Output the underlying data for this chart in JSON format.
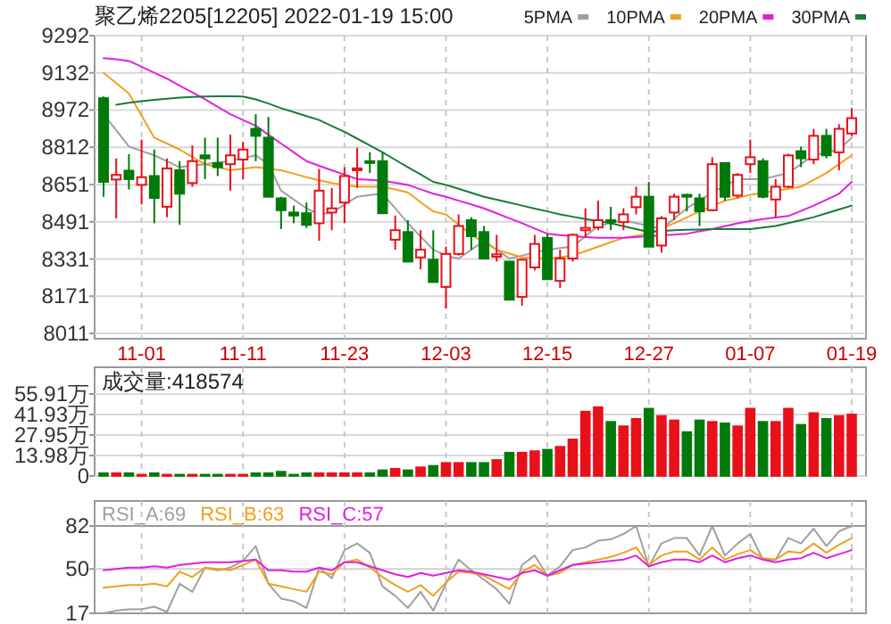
{
  "chart_data": [
    {
      "type": "candlestick",
      "title": "聚乙烯2205[12205]  2022-01-19 15:00",
      "legend": "top right",
      "grid": true,
      "categories": [
        null,
        null,
        null,
        "11-01",
        null,
        null,
        null,
        null,
        null,
        null,
        null,
        "11-11",
        null,
        null,
        null,
        null,
        null,
        null,
        null,
        "11-23",
        null,
        null,
        null,
        null,
        null,
        null,
        null,
        "12-03",
        null,
        null,
        null,
        null,
        null,
        null,
        null,
        "12-15",
        null,
        null,
        null,
        null,
        null,
        null,
        null,
        "12-27",
        null,
        null,
        null,
        null,
        null,
        null,
        null,
        "01-07",
        null,
        null,
        null,
        null,
        null,
        null,
        null,
        "01-19"
      ],
      "ylim": [
        8011,
        9292
      ],
      "yticks": [
        8011,
        8171,
        8331,
        8491,
        8651,
        8812,
        8972,
        9132,
        9292
      ],
      "ohlc": [
        [
          9023,
          9030,
          8599,
          8663
        ],
        [
          8673,
          8764,
          8506,
          8693
        ],
        [
          8711,
          8782,
          8630,
          8675
        ],
        [
          8650,
          8845,
          8566,
          8683
        ],
        [
          8688,
          8802,
          8485,
          8594
        ],
        [
          8556,
          8764,
          8511,
          8721
        ],
        [
          8713,
          8752,
          8478,
          8612
        ],
        [
          8658,
          8820,
          8642,
          8752
        ],
        [
          8777,
          8853,
          8675,
          8764
        ],
        [
          8744,
          8853,
          8688,
          8726
        ],
        [
          8739,
          8866,
          8625,
          8777
        ],
        [
          8759,
          8835,
          8675,
          8802
        ],
        [
          8891,
          8954,
          8752,
          8861
        ],
        [
          8853,
          8942,
          8599,
          8599
        ],
        [
          8592,
          8599,
          8460,
          8541
        ],
        [
          8531,
          8561,
          8485,
          8518
        ],
        [
          8528,
          8574,
          8465,
          8478
        ],
        [
          8485,
          8719,
          8409,
          8625
        ],
        [
          8531,
          8637,
          8455,
          8549
        ],
        [
          8574,
          8726,
          8485,
          8688
        ],
        [
          8713,
          8810,
          8637,
          8721
        ],
        [
          8752,
          8790,
          8701,
          8744
        ],
        [
          8752,
          8790,
          8528,
          8528
        ],
        [
          8414,
          8518,
          8371,
          8455
        ],
        [
          8447,
          8498,
          8320,
          8320
        ],
        [
          8338,
          8455,
          8287,
          8371
        ],
        [
          8328,
          8455,
          8232,
          8232
        ],
        [
          8211,
          8384,
          8118,
          8353
        ],
        [
          8353,
          8523,
          8346,
          8473
        ],
        [
          8498,
          8511,
          8371,
          8429
        ],
        [
          8447,
          8473,
          8333,
          8333
        ],
        [
          8341,
          8435,
          8320,
          8351
        ],
        [
          8320,
          8320,
          8156,
          8156
        ],
        [
          8168,
          8333,
          8130,
          8328
        ],
        [
          8295,
          8435,
          8282,
          8396
        ],
        [
          8422,
          8440,
          8244,
          8244
        ],
        [
          8237,
          8371,
          8206,
          8333
        ],
        [
          8333,
          8440,
          8320,
          8435
        ],
        [
          8455,
          8549,
          8422,
          8465
        ],
        [
          8467,
          8582,
          8455,
          8498
        ],
        [
          8498,
          8556,
          8455,
          8490
        ],
        [
          8490,
          8549,
          8455,
          8523
        ],
        [
          8554,
          8642,
          8523,
          8599
        ],
        [
          8599,
          8663,
          8384,
          8384
        ],
        [
          8389,
          8516,
          8358,
          8506
        ],
        [
          8531,
          8612,
          8498,
          8599
        ],
        [
          8607,
          8612,
          8536,
          8599
        ],
        [
          8592,
          8612,
          8473,
          8536
        ],
        [
          8541,
          8769,
          8536,
          8739
        ],
        [
          8744,
          8744,
          8582,
          8599
        ],
        [
          8604,
          8701,
          8592,
          8693
        ],
        [
          8739,
          8845,
          8701,
          8769
        ],
        [
          8752,
          8764,
          8592,
          8599
        ],
        [
          8587,
          8675,
          8511,
          8642
        ],
        [
          8642,
          8784,
          8637,
          8777
        ],
        [
          8795,
          8815,
          8726,
          8764
        ],
        [
          8759,
          8891,
          8739,
          8861
        ],
        [
          8861,
          8891,
          8764,
          8777
        ],
        [
          8790,
          8911,
          8713,
          8891
        ],
        [
          8871,
          8980,
          8861,
          8937
        ]
      ],
      "series": [
        {
          "name": "5PMA",
          "type": "line",
          "color": "#a0a0a0",
          "values": [
            8954,
            8885,
            8815,
            8796,
            8777,
            8752,
            8726,
            8733,
            8739,
            8746,
            8752,
            8765,
            8777,
            8739,
            8625,
            8587,
            8549,
            8523,
            8531,
            8565,
            8599,
            8606,
            8612,
            8549,
            8485,
            8428,
            8371,
            8346,
            8333,
            8371,
            8409,
            8371,
            8333,
            8346,
            8359,
            8371,
            8378,
            8384,
            8429,
            8473,
            8486,
            8498,
            8486,
            8473,
            8460,
            8505,
            8549,
            8583,
            8617,
            8646,
            8675,
            8675,
            8675,
            8688,
            8701,
            8739,
            8777,
            8790,
            8802,
            8853
          ]
        },
        {
          "name": "10PMA",
          "type": "line",
          "color": "#f0a020",
          "values": [
            9132,
            9088,
            9043,
            8948,
            8853,
            8828,
            8802,
            8770,
            8739,
            8726,
            8713,
            8720,
            8726,
            8720,
            8713,
            8698,
            8683,
            8670,
            8658,
            8650,
            8642,
            8642,
            8642,
            8630,
            8617,
            8576,
            8536,
            8523,
            8479,
            8435,
            8403,
            8371,
            8354,
            8338,
            8335,
            8333,
            8339,
            8346,
            8365,
            8384,
            8403,
            8422,
            8431,
            8440,
            8462,
            8485,
            8510,
            8536,
            8559,
            8582,
            8594,
            8607,
            8616,
            8625,
            8633,
            8642,
            8671,
            8701,
            8739,
            8777
          ]
        },
        {
          "name": "20PMA",
          "type": "line",
          "color": "#e020e0",
          "values": [
            9195,
            9190,
            9183,
            9158,
            9132,
            9107,
            9077,
            9048,
            9018,
            8986,
            8954,
            8929,
            8904,
            8866,
            8828,
            8790,
            8752,
            8732,
            8713,
            8694,
            8675,
            8672,
            8668,
            8659,
            8650,
            8631,
            8612,
            8599,
            8582,
            8566,
            8549,
            8528,
            8506,
            8485,
            8462,
            8440,
            8434,
            8429,
            8425,
            8422,
            8422,
            8422,
            8425,
            8429,
            8433,
            8436,
            8440,
            8450,
            8460,
            8472,
            8485,
            8494,
            8503,
            8510,
            8516,
            8538,
            8561,
            8586,
            8612,
            8663
          ]
        },
        {
          "name": "30PMA",
          "type": "line",
          "color": "#1a7a3a",
          "values": [
            null,
            8995,
            9003,
            9010,
            9016,
            9021,
            9025,
            9028,
            9030,
            9031,
            9031,
            9030,
            9018,
            9000,
            8980,
            8963,
            8946,
            8929,
            8903,
            8878,
            8849,
            8820,
            8790,
            8758,
            8726,
            8695,
            8663,
            8650,
            8633,
            8616,
            8599,
            8586,
            8574,
            8561,
            8548,
            8536,
            8523,
            8513,
            8503,
            8494,
            8485,
            8472,
            8460,
            8447,
            8451,
            8455,
            8457,
            8458,
            8460,
            8460,
            8460,
            8460,
            8466,
            8473,
            8486,
            8498,
            8511,
            8528,
            8544,
            8561
          ]
        }
      ]
    },
    {
      "type": "bar",
      "title": "成交量:418574",
      "grid": true,
      "tick_labels": "y",
      "categories": [
        null,
        null,
        null,
        null,
        null,
        null,
        null,
        null,
        null,
        null,
        null,
        null,
        null,
        null,
        null,
        null,
        null,
        null,
        null,
        null,
        null,
        null,
        null,
        null,
        null,
        null,
        null,
        null,
        null,
        null,
        null,
        null,
        null,
        null,
        null,
        null,
        null,
        null,
        null,
        null,
        null,
        null,
        null,
        null,
        null,
        null,
        null,
        null,
        null,
        null,
        null,
        null,
        null,
        null,
        null,
        null,
        null,
        null,
        null,
        null
      ],
      "ylim": [
        0,
        55.91
      ],
      "yticks": [
        0,
        {
          "value": 13.98,
          "label": "13.98万"
        },
        {
          "value": 27.95,
          "label": "27.95万"
        },
        {
          "value": 41.93,
          "label": "41.93万"
        },
        {
          "value": 55.91,
          "label": "55.91万"
        }
      ],
      "values": [
        2,
        2,
        2,
        1,
        2,
        1,
        1,
        1,
        1,
        1,
        1,
        1,
        2,
        2,
        3,
        1,
        2,
        2,
        2,
        2,
        2,
        2,
        4,
        5,
        4,
        6,
        7,
        9,
        9,
        9,
        9,
        11,
        16,
        16,
        17,
        18,
        20,
        25,
        44,
        47,
        37,
        34,
        39,
        46,
        41,
        38,
        30,
        38,
        37,
        36,
        34,
        46,
        37,
        37,
        46,
        35,
        43,
        39,
        41,
        42
      ],
      "colors": [
        "#007a0a",
        "#e8101a",
        "#007a0a",
        "#e8101a",
        "#007a0a",
        "#e8101a",
        "#007a0a",
        "#e8101a",
        "#007a0a",
        "#007a0a",
        "#e8101a",
        "#e8101a",
        "#007a0a",
        "#007a0a",
        "#007a0a",
        "#007a0a",
        "#007a0a",
        "#e8101a",
        "#e8101a",
        "#e8101a",
        "#e8101a",
        "#007a0a",
        "#007a0a",
        "#e8101a",
        "#007a0a",
        "#e8101a",
        "#007a0a",
        "#e8101a",
        "#e8101a",
        "#007a0a",
        "#007a0a",
        "#e8101a",
        "#007a0a",
        "#e8101a",
        "#e8101a",
        "#007a0a",
        "#e8101a",
        "#e8101a",
        "#e8101a",
        "#e8101a",
        "#007a0a",
        "#e8101a",
        "#e8101a",
        "#007a0a",
        "#e8101a",
        "#e8101a",
        "#007a0a",
        "#007a0a",
        "#e8101a",
        "#007a0a",
        "#e8101a",
        "#e8101a",
        "#007a0a",
        "#e8101a",
        "#e8101a",
        "#007a0a",
        "#e8101a",
        "#007a0a",
        "#e8101a",
        "#e8101a"
      ]
    },
    {
      "type": "line",
      "legend": "top left",
      "grid": "x",
      "tick_labels": "y",
      "ref_lines": [
        {
          "axis": "y",
          "value": 50
        }
      ],
      "categories": [
        null,
        null,
        null,
        null,
        null,
        null,
        null,
        null,
        null,
        null,
        null,
        null,
        null,
        null,
        null,
        null,
        null,
        null,
        null,
        null,
        null,
        null,
        null,
        null,
        null,
        null,
        null,
        null,
        null,
        null,
        null,
        null,
        null,
        null,
        null,
        null,
        null,
        null,
        null,
        null,
        null,
        null,
        null,
        null,
        null,
        null,
        null,
        null,
        null,
        null,
        null,
        null,
        null,
        null,
        null,
        null,
        null,
        null,
        null,
        null
      ],
      "ylim": [
        17,
        82
      ],
      "yticks": [
        17,
        50,
        82
      ],
      "series": [
        {
          "name": "RSI_A:69",
          "color": "#a0a0a0",
          "values": [
            17,
            19,
            20,
            20,
            22,
            18,
            39,
            33,
            51,
            49,
            51,
            56,
            67,
            39,
            28,
            26,
            21,
            51,
            43,
            64,
            69,
            62,
            37,
            30,
            21,
            33,
            19,
            39,
            57,
            49,
            42,
            35,
            24,
            53,
            60,
            45,
            52,
            64,
            66,
            71,
            72,
            76,
            82,
            52,
            69,
            73,
            73,
            60,
            82,
            60,
            69,
            76,
            57,
            57,
            73,
            69,
            80,
            67,
            78,
            82
          ]
        },
        {
          "name": "RSI_B:63",
          "color": "#f0a020",
          "values": [
            36,
            37,
            38,
            38,
            39,
            37,
            48,
            44,
            51,
            50,
            49,
            53,
            57,
            39,
            37,
            35,
            33,
            48,
            46,
            55,
            57,
            51,
            44,
            38,
            33,
            38,
            30,
            40,
            48,
            47,
            45,
            40,
            35,
            48,
            53,
            45,
            47,
            53,
            55,
            57,
            59,
            62,
            66,
            53,
            60,
            63,
            63,
            57,
            66,
            57,
            61,
            64,
            58,
            57,
            63,
            62,
            69,
            62,
            68,
            73
          ]
        },
        {
          "name": "RSI_C:57",
          "color": "#e020e0",
          "values": [
            49,
            50,
            51,
            51,
            52,
            51,
            53,
            54,
            55,
            55,
            55,
            56,
            57,
            49,
            49,
            48,
            48,
            51,
            49,
            55,
            55,
            52,
            49,
            46,
            44,
            47,
            45,
            47,
            49,
            48,
            46,
            44,
            42,
            47,
            49,
            45,
            49,
            53,
            54,
            55,
            56,
            57,
            60,
            52,
            55,
            57,
            57,
            55,
            60,
            55,
            58,
            60,
            57,
            55,
            57,
            58,
            62,
            58,
            61,
            64
          ]
        }
      ]
    }
  ]
}
